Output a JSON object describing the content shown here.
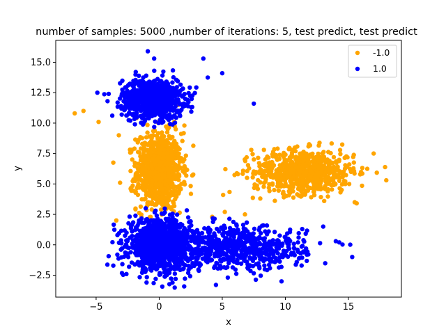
{
  "chart_data": {
    "type": "scatter",
    "title": "number of samples: 5000 ,number of iterations:  5, test predict, test predict",
    "xlabel": "x",
    "ylabel": "y",
    "xlim": [
      -8.2,
      19.2
    ],
    "ylim": [
      -4.3,
      16.8
    ],
    "xticks": [
      -5,
      0,
      5,
      10,
      15
    ],
    "yticks": [
      -2.5,
      0.0,
      2.5,
      5.0,
      7.5,
      10.0,
      12.5,
      15.0
    ],
    "xtick_labels": [
      "−5",
      "0",
      "5",
      "10",
      "15"
    ],
    "ytick_labels": [
      "−2.5",
      "0.0",
      "2.5",
      "5.0",
      "7.5",
      "10.0",
      "12.5",
      "15.0"
    ],
    "grid": false,
    "legend_position": "top-right",
    "series": [
      {
        "name": "-1.0",
        "color": "#ffa500",
        "clusters": [
          {
            "center": [
              0.0,
              6.0
            ],
            "spread": [
              0.9,
              1.6
            ],
            "count": 900
          },
          {
            "center": [
              11.5,
              6.0
            ],
            "spread": [
              2.0,
              0.9
            ],
            "count": 700
          }
        ],
        "points": [
          [
            -6.7,
            10.8
          ],
          [
            -6.0,
            11.0
          ],
          [
            -4.8,
            10.1
          ],
          [
            -3.2,
            9.0
          ],
          [
            -3.1,
            5.1
          ],
          [
            -3.4,
            2.0
          ],
          [
            17.0,
            7.5
          ],
          [
            18.0,
            5.3
          ],
          [
            15.5,
            3.5
          ],
          [
            7.3,
            7.8
          ],
          [
            8.3,
            7.8
          ],
          [
            6.8,
            2.5
          ],
          [
            5.2,
            2.7
          ],
          [
            4.2,
            2.3
          ],
          [
            1.2,
            10.1
          ],
          [
            2.0,
            9.8
          ],
          [
            -1.8,
            10.4
          ]
        ]
      },
      {
        "name": "1.0",
        "color": "#0000ff",
        "clusters": [
          {
            "center": [
              -0.5,
              12.0
            ],
            "spread": [
              1.2,
              0.8
            ],
            "count": 850
          },
          {
            "center": [
              0.0,
              0.0
            ],
            "spread": [
              1.2,
              1.0
            ],
            "count": 1100
          },
          {
            "center": [
              6.0,
              -0.3
            ],
            "spread": [
              2.8,
              0.9
            ],
            "count": 650
          }
        ],
        "points": [
          [
            -0.9,
            15.9
          ],
          [
            -0.4,
            15.3
          ],
          [
            3.5,
            15.3
          ],
          [
            5.0,
            14.1
          ],
          [
            7.5,
            11.6
          ],
          [
            -4.9,
            12.5
          ],
          [
            -4.0,
            12.4
          ],
          [
            -2.6,
            -2.4
          ],
          [
            1.3,
            -2.8
          ],
          [
            15.3,
            -1.0
          ],
          [
            14.0,
            0.3
          ],
          [
            13.0,
            1.5
          ],
          [
            9.7,
            -3.0
          ],
          [
            4.5,
            -3.3
          ],
          [
            -1.0,
            -3.1
          ]
        ]
      }
    ]
  }
}
